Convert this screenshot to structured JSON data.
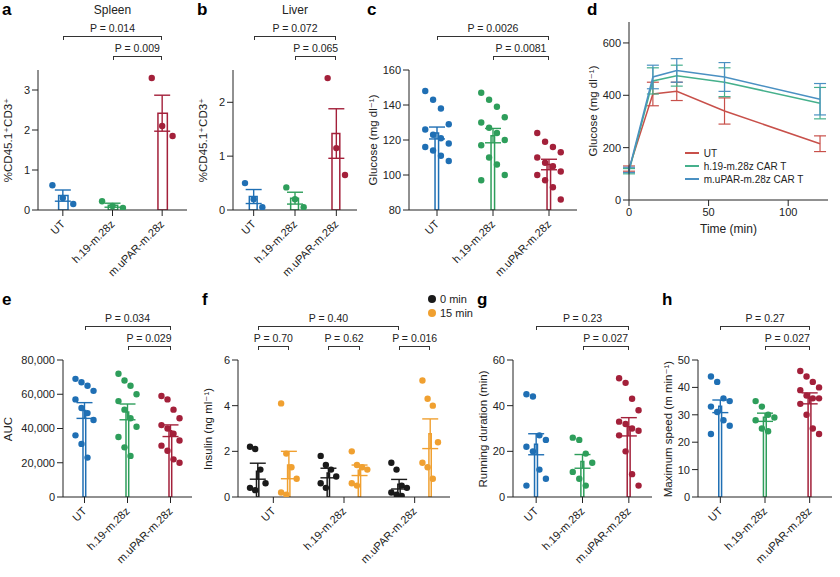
{
  "chart_data": [
    {
      "panel": "a",
      "type": "bar",
      "title": "Spleen",
      "ylabel": "%CD45.1⁺CD3⁺",
      "categories": [
        "UT",
        "h.19-m.28z",
        "m.uPAR-m.28z"
      ],
      "colors": [
        "#1f6fb4",
        "#2e9e5b",
        "#a3203a"
      ],
      "values": [
        0.36,
        0.12,
        2.42
      ],
      "errors": [
        0.14,
        0.05,
        0.45
      ],
      "points": [
        [
          0.62,
          0.3,
          0.15
        ],
        [
          0.22,
          0.1,
          0.05
        ],
        [
          3.3,
          2.1,
          1.85
        ]
      ],
      "ylim": [
        0,
        3.5
      ],
      "yticks": [
        0,
        1,
        2,
        3
      ],
      "comparisons": [
        {
          "label": "P = 0.014",
          "between": [
            "UT",
            "m.uPAR-m.28z"
          ]
        },
        {
          "label": "P = 0.009",
          "between": [
            "h.19-m.28z",
            "m.uPAR-m.28z"
          ]
        }
      ]
    },
    {
      "panel": "b",
      "type": "bar",
      "title": "Liver",
      "ylabel": "%CD45.1⁺CD3⁺",
      "categories": [
        "UT",
        "h.19-m.28z",
        "m.uPAR-m.28z"
      ],
      "colors": [
        "#1f6fb4",
        "#2e9e5b",
        "#a3203a"
      ],
      "values": [
        0.25,
        0.22,
        1.42
      ],
      "errors": [
        0.13,
        0.11,
        0.46
      ],
      "points": [
        [
          0.5,
          0.2,
          0.05
        ],
        [
          0.42,
          0.2,
          0.05
        ],
        [
          2.45,
          1.15,
          0.65
        ]
      ],
      "ylim": [
        0,
        2.6
      ],
      "yticks": [
        0,
        1,
        2
      ],
      "comparisons": [
        {
          "label": "P = 0.072",
          "between": [
            "UT",
            "m.uPAR-m.28z"
          ]
        },
        {
          "label": "P = 0.065",
          "between": [
            "h.19-m.28z",
            "m.uPAR-m.28z"
          ]
        }
      ]
    },
    {
      "panel": "c",
      "type": "bar",
      "ylabel": "Glucose (mg dl⁻¹)",
      "categories": [
        "UT",
        "h.19-m.28z",
        "m.uPAR-m.28z"
      ],
      "colors": [
        "#1f6fb4",
        "#2e9e5b",
        "#a3203a"
      ],
      "values": [
        124,
        122.5,
        106
      ],
      "errors": [
        3.4,
        4.1,
        3
      ],
      "points": [
        [
          148,
          143,
          138,
          129,
          126,
          123,
          121,
          118,
          116,
          114,
          111,
          108
        ],
        [
          147,
          143,
          139,
          133,
          130,
          127,
          124,
          120,
          117,
          110,
          106,
          100,
          97
        ],
        [
          124,
          119,
          116,
          113,
          110,
          107,
          105,
          102,
          100,
          97,
          93,
          86
        ]
      ],
      "ylim": [
        80,
        160
      ],
      "yticks": [
        80,
        100,
        120,
        140,
        160
      ],
      "comparisons": [
        {
          "label": "P = 0.0026",
          "between": [
            "UT",
            "m.uPAR-m.28z"
          ]
        },
        {
          "label": "P = 0.0081",
          "between": [
            "h.19-m.28z",
            "m.uPAR-m.28z"
          ]
        }
      ]
    },
    {
      "panel": "d",
      "type": "line",
      "ylabel": "Glucose (mg dl⁻¹)",
      "xlabel": "Time (min)",
      "x": [
        0,
        15,
        30,
        60,
        120
      ],
      "series": [
        {
          "name": "UT",
          "color": "#c8504a",
          "values": [
            120,
            405,
            415,
            340,
            215
          ],
          "errors": [
            10,
            45,
            35,
            50,
            30
          ]
        },
        {
          "name": "h.19-m.28z CAR T",
          "color": "#45b08c",
          "values": [
            110,
            455,
            475,
            450,
            370
          ],
          "errors": [
            10,
            50,
            40,
            55,
            60
          ]
        },
        {
          "name": "m.uPAR-m.28z CAR T",
          "color": "#4a90c2",
          "values": [
            115,
            470,
            495,
            470,
            385
          ],
          "errors": [
            10,
            45,
            45,
            55,
            60
          ]
        }
      ],
      "xlim": [
        0,
        125
      ],
      "xticks": [
        0,
        50,
        100
      ],
      "ylim": [
        0,
        680
      ],
      "yticks": [
        0,
        200,
        400,
        600
      ],
      "legend": "lower right"
    },
    {
      "panel": "e",
      "type": "bar",
      "ylabel": "AUC",
      "categories": [
        "UT",
        "h.19-m.28z",
        "m.uPAR-m.28z"
      ],
      "colors": [
        "#1f6fb4",
        "#2e9e5b",
        "#a3203a"
      ],
      "values": [
        50500,
        49700,
        38700
      ],
      "errors": [
        4600,
        4600,
        3400
      ],
      "points": [
        [
          69000,
          67000,
          65000,
          62000,
          57000,
          52000,
          49000,
          45000,
          36000,
          31000,
          23000
        ],
        [
          72000,
          68000,
          65000,
          60000,
          56000,
          51000,
          46000,
          41000,
          35000,
          29000,
          24000
        ],
        [
          59000,
          57000,
          51000,
          46000,
          42000,
          40000,
          37000,
          33000,
          30000,
          27000,
          22000,
          20000
        ]
      ],
      "ylim": [
        0,
        80000
      ],
      "yticks": [
        0,
        {
          "value": 20000,
          "label": "20,000"
        },
        {
          "value": 40000,
          "label": "40,000"
        },
        {
          "value": 60000,
          "label": "60,000"
        },
        {
          "value": 80000,
          "label": "80,000"
        }
      ],
      "comparisons": [
        {
          "label": "P = 0.034",
          "between": [
            "UT",
            "m.uPAR-m.28z"
          ]
        },
        {
          "label": "P = 0.029",
          "between": [
            "h.19-m.28z",
            "m.uPAR-m.28z"
          ]
        }
      ]
    },
    {
      "panel": "f",
      "type": "bar",
      "ylabel": "Insulin (ng ml⁻¹)",
      "categories": [
        "UT",
        "h.19-m.28z",
        "m.uPAR-m.28z"
      ],
      "series": [
        {
          "name": "0 min",
          "color": "#1a1a1a",
          "values": [
            1.13,
            1.05,
            0.56
          ],
          "errors": [
            0.35,
            0.21,
            0.21
          ],
          "points": [
            [
              2.2,
              2.1,
              1.2,
              0.6,
              0.4,
              0.3
            ],
            [
              1.8,
              1.4,
              1.2,
              0.9,
              0.6,
              0.4
            ],
            [
              1.5,
              1.2,
              0.5,
              0.4,
              0.2,
              0.1,
              0.05
            ]
          ]
        },
        {
          "name": "15 min",
          "color": "#f0a030",
          "values": [
            1.4,
            1.17,
            2.77
          ],
          "errors": [
            0.6,
            0.23,
            0.65
          ],
          "points": [
            [
              4.1,
              1.9,
              1.3,
              0.8,
              0.2,
              0.1
            ],
            [
              2.0,
              1.4,
              1.3,
              1.2,
              0.6,
              0.5
            ],
            [
              5.1,
              4.3,
              4.0,
              2.4,
              1.5,
              1.3,
              0.8
            ]
          ]
        }
      ],
      "legend": "upper right",
      "ylim": [
        0,
        6
      ],
      "yticks": [
        0,
        2,
        4,
        6
      ],
      "comparisons": [
        {
          "label": "P = 0.40",
          "between": [
            [
              "UT",
              "0 min"
            ],
            [
              "m.uPAR-m.28z",
              "0 min"
            ]
          ]
        },
        {
          "label": "P = 0.70",
          "between": [
            [
              "UT",
              "0 min"
            ],
            [
              "UT",
              "15 min"
            ]
          ]
        },
        {
          "label": "P = 0.62",
          "between": [
            [
              "h.19-m.28z",
              "0 min"
            ],
            [
              "h.19-m.28z",
              "15 min"
            ]
          ]
        },
        {
          "label": "P = 0.016",
          "between": [
            [
              "m.uPAR-m.28z",
              "0 min"
            ],
            [
              "m.uPAR-m.28z",
              "15 min"
            ]
          ]
        }
      ]
    },
    {
      "panel": "g",
      "type": "bar",
      "ylabel": "Running duration (min)",
      "categories": [
        "UT",
        "h.19-m.28z",
        "m.uPAR-m.28z"
      ],
      "colors": [
        "#1f6fb4",
        "#2e9e5b",
        "#a3203a"
      ],
      "values": [
        23.1,
        15.6,
        30.75
      ],
      "errors": [
        4.6,
        3,
        4
      ],
      "points": [
        [
          45,
          44,
          27,
          25,
          22,
          20,
          12,
          8,
          5
        ],
        [
          26,
          25,
          19,
          15,
          11,
          8,
          5
        ],
        [
          52,
          50,
          43,
          38,
          33,
          32,
          30,
          29,
          27,
          20,
          10,
          5
        ]
      ],
      "ylim": [
        0,
        60
      ],
      "yticks": [
        0,
        20,
        40,
        60
      ],
      "comparisons": [
        {
          "label": "P = 0.23",
          "between": [
            "UT",
            "m.uPAR-m.28z"
          ]
        },
        {
          "label": "P = 0.027",
          "between": [
            "h.19-m.28z",
            "m.uPAR-m.28z"
          ]
        }
      ]
    },
    {
      "panel": "h",
      "type": "bar",
      "ylabel": "Maximum speed (m min⁻¹)",
      "categories": [
        "UT",
        "h.19-m.28z",
        "m.uPAR-m.28z"
      ],
      "colors": [
        "#1f6fb4",
        "#2e9e5b",
        "#a3203a"
      ],
      "values": [
        33.1,
        29.1,
        36
      ],
      "errors": [
        2.3,
        1.5,
        2
      ],
      "points": [
        [
          44,
          42,
          36,
          35,
          33,
          31,
          28,
          26,
          23
        ],
        [
          35,
          33,
          30,
          29,
          28,
          25,
          24
        ],
        [
          46,
          44,
          42,
          40,
          39,
          37,
          36,
          36,
          34,
          30,
          25,
          23
        ]
      ],
      "ylim": [
        0,
        50
      ],
      "yticks": [
        0,
        10,
        20,
        30,
        40,
        50
      ],
      "comparisons": [
        {
          "label": "P = 0.27",
          "between": [
            "UT",
            "m.uPAR-m.28z"
          ]
        },
        {
          "label": "P = 0.027",
          "between": [
            "h.19-m.28z",
            "m.uPAR-m.28z"
          ]
        }
      ]
    }
  ]
}
